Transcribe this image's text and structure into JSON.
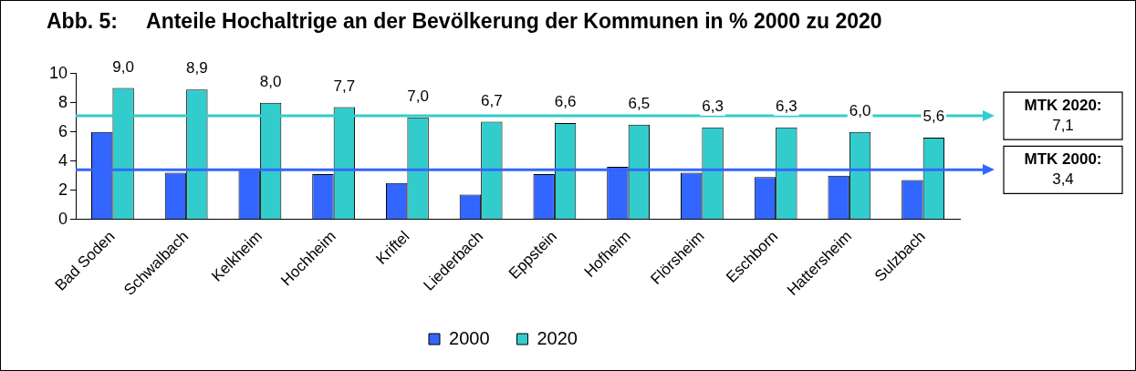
{
  "chart_data": {
    "type": "bar",
    "title": "Abb. 5:     Anteile Hochaltrige an der Bevölkerung der Kommunen in % 2000 zu 2020",
    "categories": [
      "Bad Soden",
      "Schwalbach",
      "Kelkheim",
      "Hochheim",
      "Kriftel",
      "Liederbach",
      "Eppstein",
      "Hofheim",
      "Flörsheim",
      "Eschborn",
      "Hattersheim",
      "Sulzbach"
    ],
    "series": [
      {
        "name": "2000",
        "color": "#3366ff",
        "values": [
          6.0,
          3.2,
          3.5,
          3.1,
          2.5,
          1.7,
          3.1,
          3.6,
          3.2,
          2.9,
          3.0,
          2.7
        ]
      },
      {
        "name": "2020",
        "color": "#33cccc",
        "values": [
          9.0,
          8.9,
          8.0,
          7.7,
          7.0,
          6.7,
          6.6,
          6.5,
          6.3,
          6.3,
          6.0,
          5.6
        ],
        "value_labels": [
          "9,0",
          "8,9",
          "8,0",
          "7,7",
          "7,0",
          "6,7",
          "6,6",
          "6,5",
          "6,3",
          "6,3",
          "6,0",
          "5,6"
        ]
      }
    ],
    "ylim": [
      0,
      10
    ],
    "yticks": [
      0,
      2,
      4,
      6,
      8,
      10
    ],
    "grid": false,
    "legend": "bottom",
    "ref_lines": [
      {
        "axis": "y",
        "value": 7.1,
        "label": "MTK 2020:\n7,1",
        "color": "#33cccc"
      },
      {
        "axis": "y",
        "value": 3.4,
        "label": "MTK 2000:\n3,4",
        "color": "#3366ff"
      }
    ]
  }
}
